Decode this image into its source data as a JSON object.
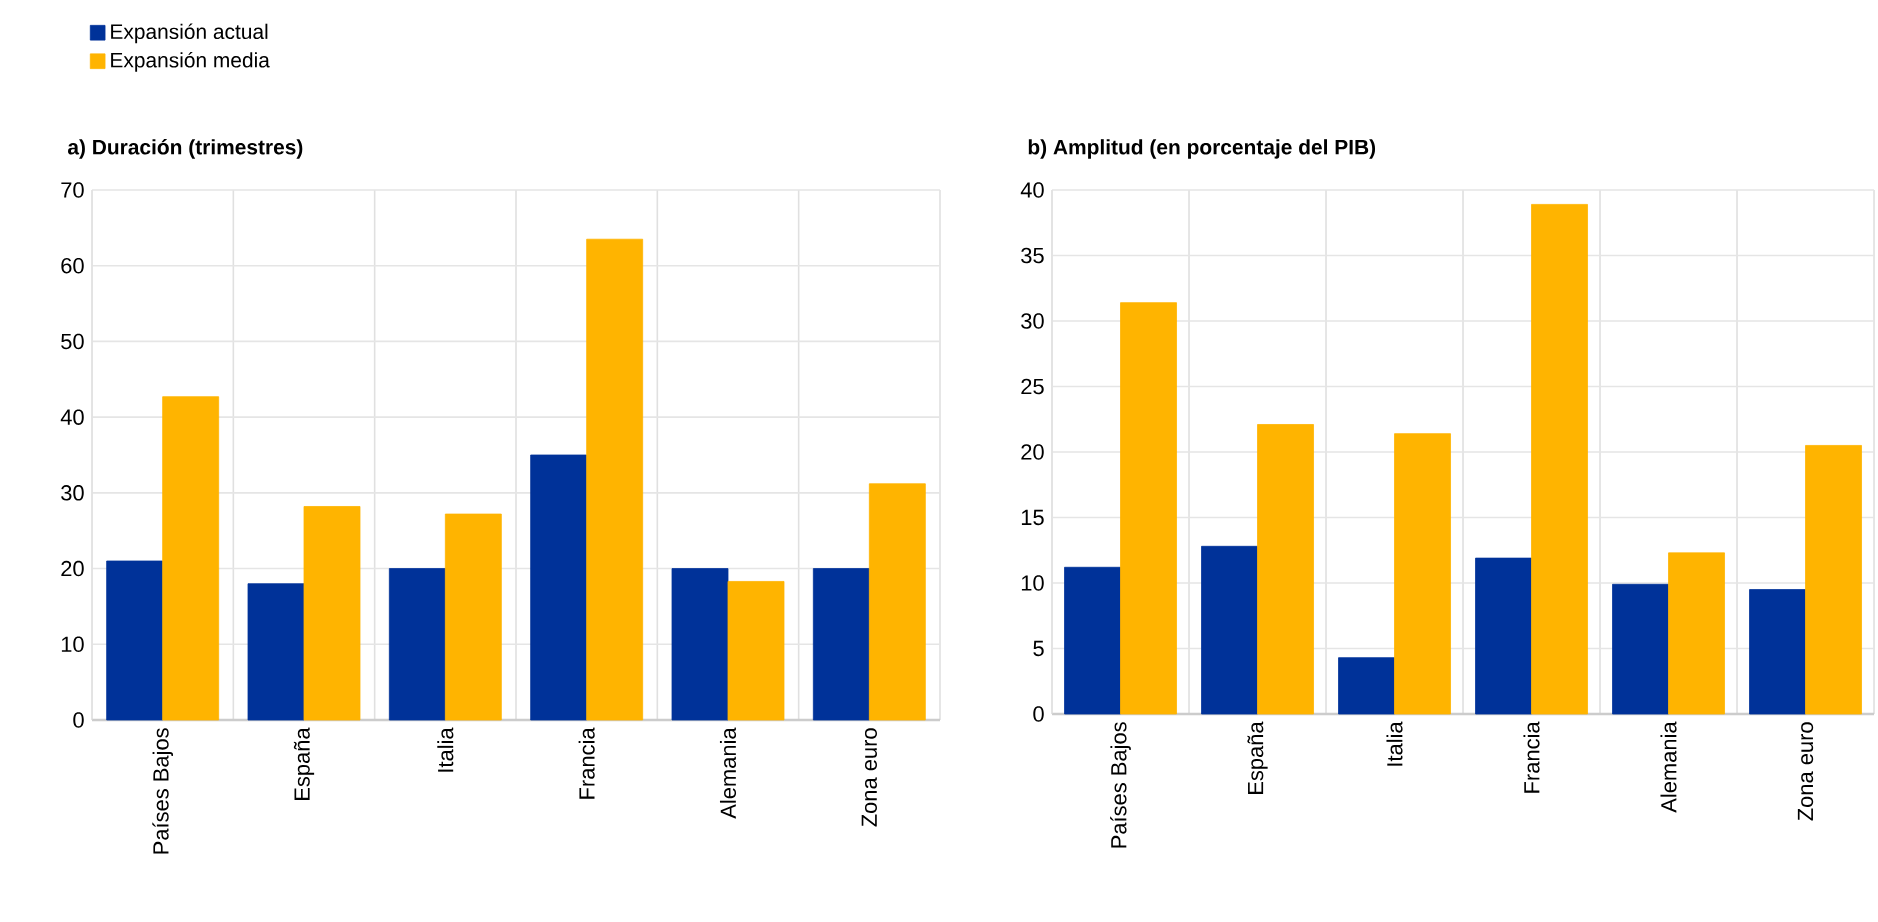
{
  "chart_data": [
    {
      "type": "bar",
      "title": "a) Duración (trimestres)",
      "categories": [
        "Países Bajos",
        "España",
        "Italia",
        "Francia",
        "Alemania",
        "Zona euro"
      ],
      "series": [
        {
          "name": "Expansión actual",
          "color": "#003299",
          "values": [
            21,
            18,
            20,
            35,
            20,
            20
          ]
        },
        {
          "name": "Expansión media",
          "color": "#ffb400",
          "values": [
            42.7,
            28.2,
            27.2,
            63.5,
            18.3,
            31.2
          ]
        }
      ],
      "ylim": [
        0,
        70
      ],
      "yticks": [
        0,
        10,
        20,
        30,
        40,
        50,
        60,
        70
      ],
      "grid": true,
      "legend": "top left"
    },
    {
      "type": "bar",
      "title": "b) Amplitud (en porcentaje del PIB)",
      "categories": [
        "Países Bajos",
        "España",
        "Italia",
        "Francia",
        "Alemania",
        "Zona euro"
      ],
      "series": [
        {
          "color": "#003299",
          "values": [
            11.2,
            12.8,
            4.3,
            11.9,
            9.9,
            9.5
          ]
        },
        {
          "color": "#ffb400",
          "values": [
            31.4,
            22.1,
            21.4,
            38.9,
            12.3,
            20.5
          ]
        }
      ],
      "ylim": [
        0,
        40
      ],
      "yticks": [
        0,
        5,
        10,
        15,
        20,
        25,
        30,
        35,
        40
      ],
      "grid": true
    }
  ]
}
